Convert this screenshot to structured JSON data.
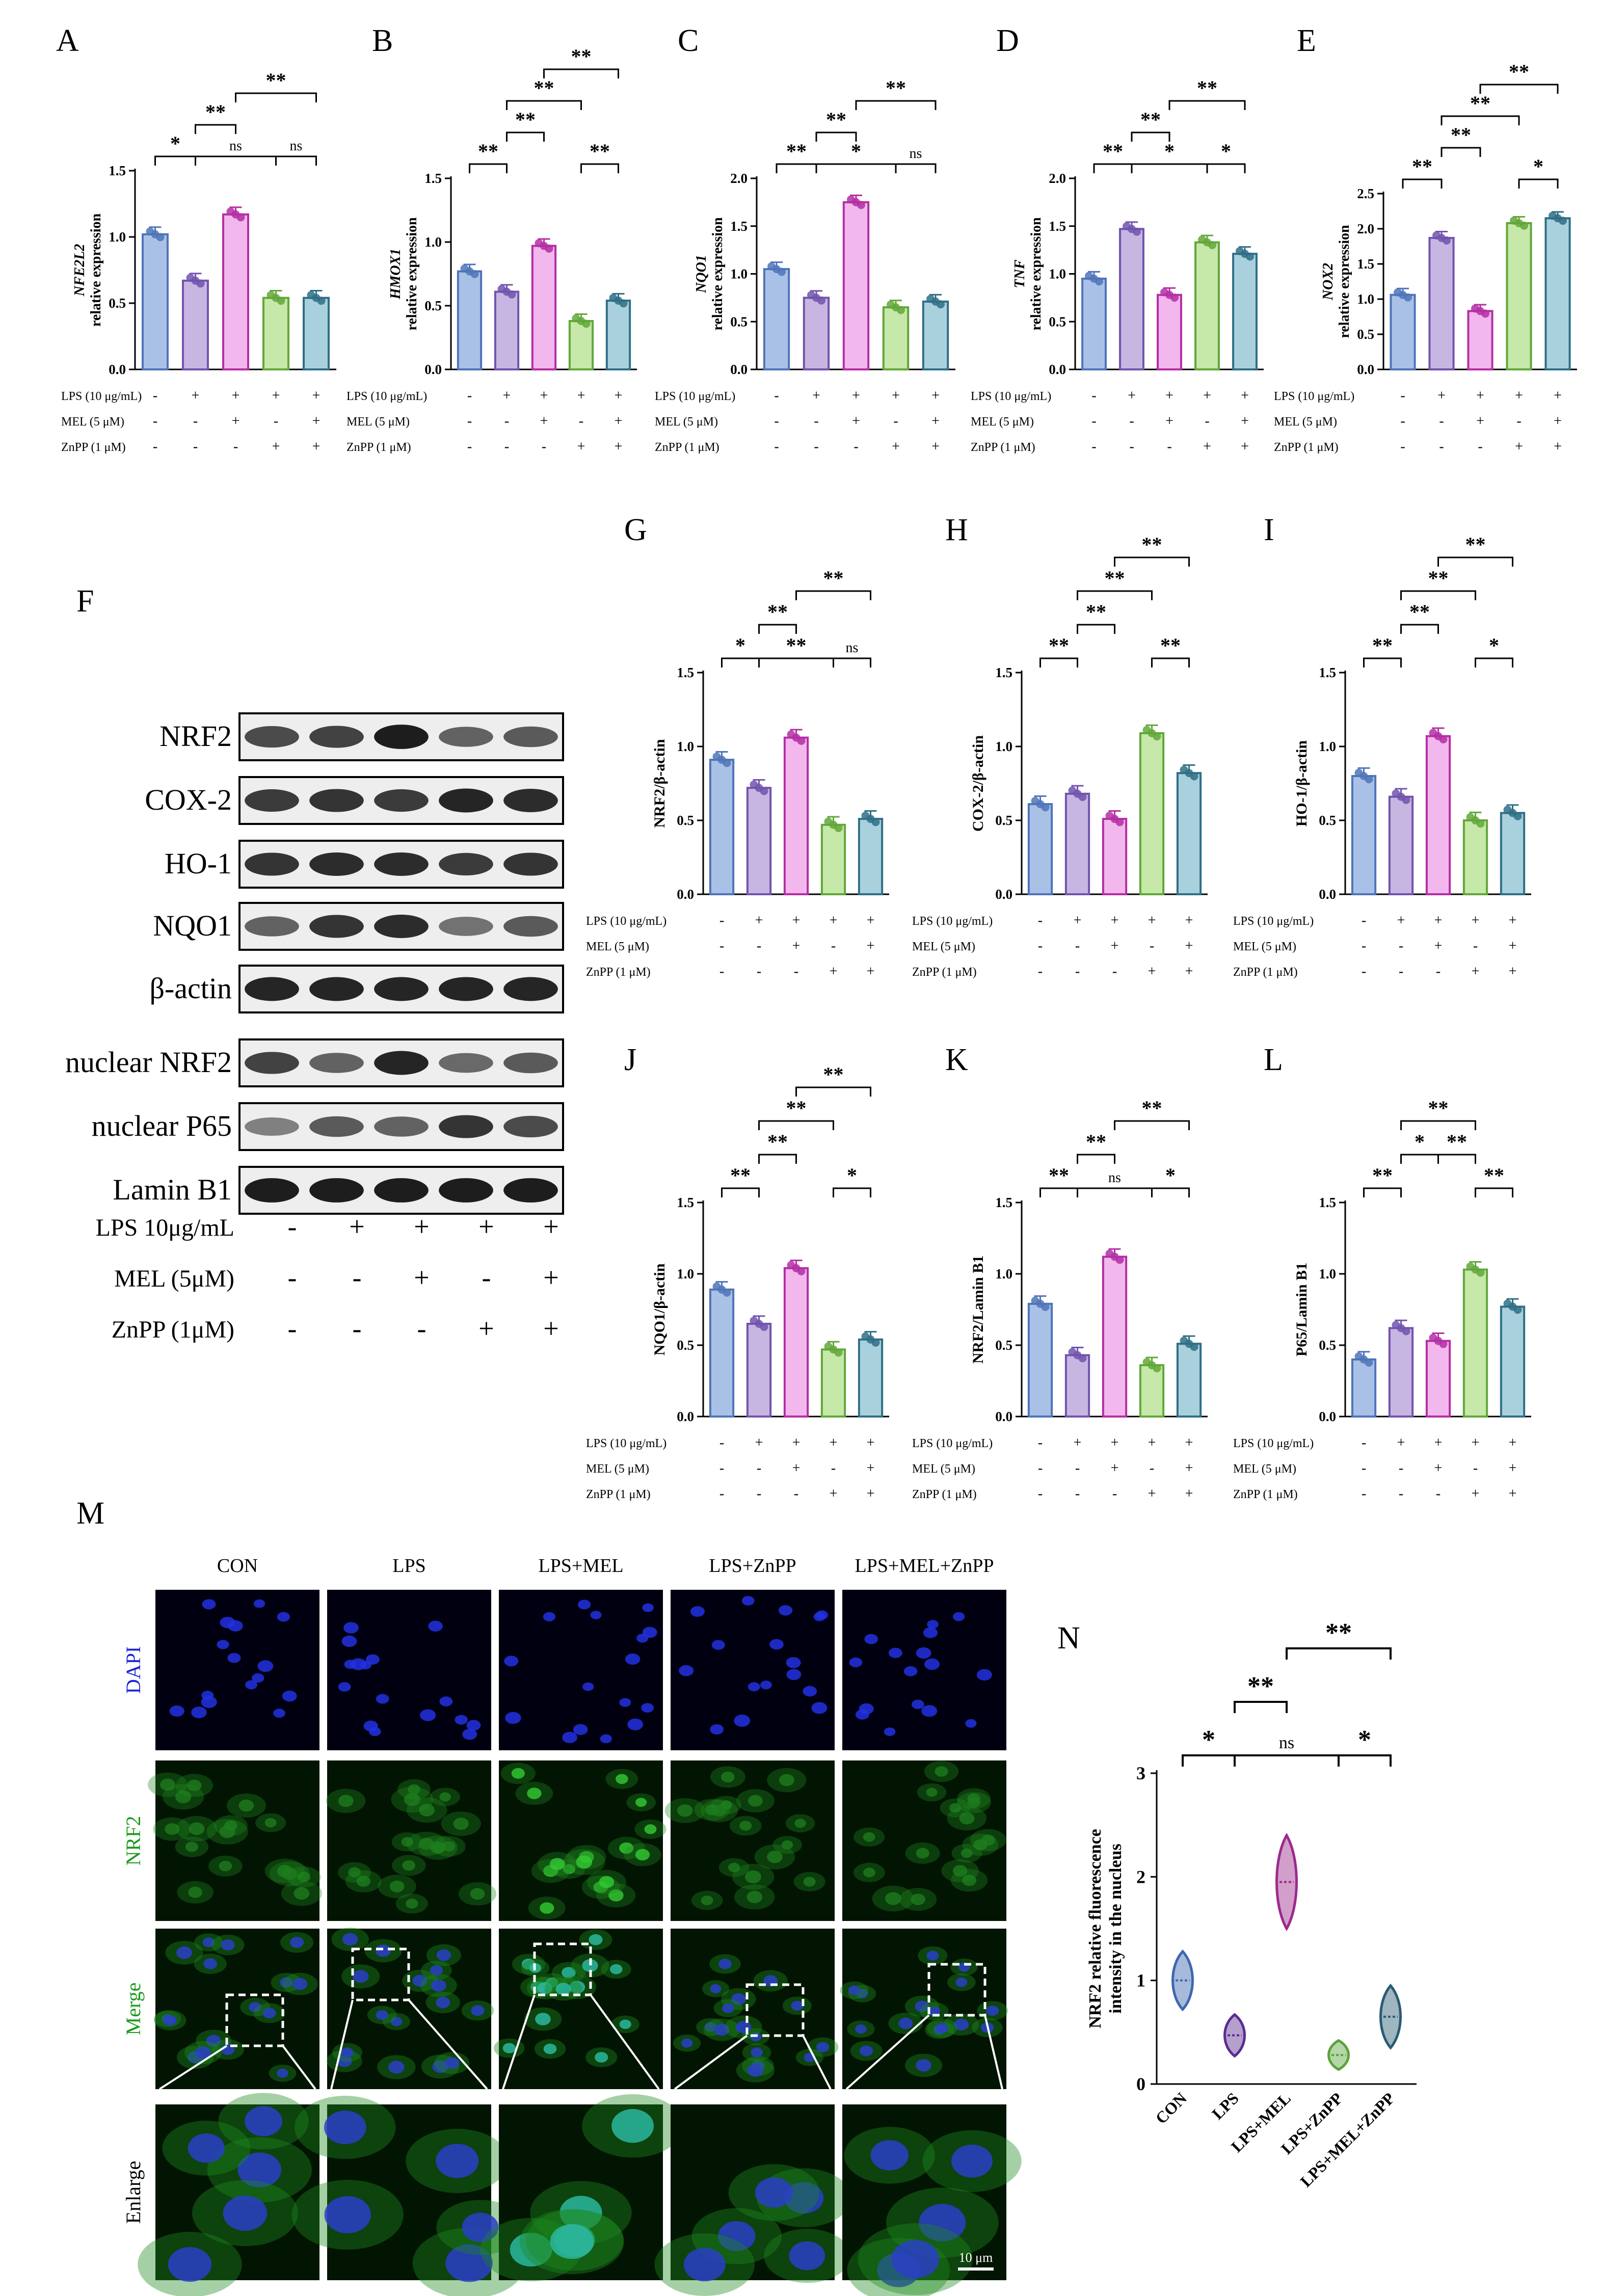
{
  "colors": {
    "g1": "#a9c1e6",
    "g1s": "#4f74b8",
    "g2": "#c7b6e2",
    "g2s": "#7154ad",
    "g3": "#f2b7ec",
    "g3s": "#b42ea4",
    "g4": "#c6e8a8",
    "g4s": "#62a73a",
    "g5": "#a9d1dd",
    "g5s": "#2f6f86",
    "violin1": "#3f67b0",
    "violin2": "#5a2d91",
    "violin3": "#9c2a8c",
    "violin4": "#5aa33c",
    "violin5": "#2a5b73",
    "dapi": "#1a23d6",
    "nrf2": "#1a9a1a"
  },
  "groups": [
    "CON",
    "LPS",
    "LPS+MEL",
    "LPS+ZnPP",
    "LPS+MEL+ZnPP"
  ],
  "treatment_rows": [
    {
      "label": "LPS (10 μg/mL)",
      "signs": [
        "-",
        "+",
        "+",
        "+",
        "+"
      ]
    },
    {
      "label": "MEL (5 μM)",
      "signs": [
        "-",
        "-",
        "+",
        "-",
        "+"
      ]
    },
    {
      "label": "ZnPP (1 μM)",
      "signs": [
        "-",
        "-",
        "-",
        "+",
        "+"
      ]
    }
  ],
  "chart_data": [
    {
      "panel": "A",
      "type": "bar",
      "ylabel_italic": "NFE2L2",
      "ylabel": "relative expression",
      "ylim": [
        0,
        1.5
      ],
      "ticks": [
        "0.0",
        "0.5",
        "1.0",
        "1.5"
      ],
      "values": [
        1.02,
        0.67,
        1.17,
        0.54,
        0.54
      ],
      "brackets": [
        {
          "a": 0,
          "b": 1,
          "l": 0,
          "t": "*"
        },
        {
          "a": 1,
          "b": 2,
          "l": 1,
          "t": "**"
        },
        {
          "a": 1,
          "b": 3,
          "l": 0,
          "t": "ns"
        },
        {
          "a": 3,
          "b": 4,
          "l": 0,
          "t": "ns"
        },
        {
          "a": 2,
          "b": 4,
          "l": 2,
          "t": "**"
        }
      ]
    },
    {
      "panel": "B",
      "type": "bar",
      "ylabel_italic": "HMOX1",
      "ylabel": "relative expression",
      "ylim": [
        0,
        1.5
      ],
      "ticks": [
        "0.0",
        "0.5",
        "1.0",
        "1.5"
      ],
      "values": [
        0.77,
        0.61,
        0.97,
        0.38,
        0.54
      ],
      "brackets": [
        {
          "a": 0,
          "b": 1,
          "l": 0,
          "t": "**"
        },
        {
          "a": 1,
          "b": 2,
          "l": 1,
          "t": "**"
        },
        {
          "a": 1,
          "b": 3,
          "l": 2,
          "t": "**"
        },
        {
          "a": 3,
          "b": 4,
          "l": 0,
          "t": "**"
        },
        {
          "a": 2,
          "b": 4,
          "l": 3,
          "t": "**"
        }
      ]
    },
    {
      "panel": "C",
      "type": "bar",
      "ylabel_italic": "NQO1",
      "ylabel": "relative expression",
      "ylim": [
        0,
        2.0
      ],
      "ticks": [
        "0.0",
        "0.5",
        "1.0",
        "1.5",
        "2.0"
      ],
      "values": [
        1.05,
        0.75,
        1.75,
        0.65,
        0.71
      ],
      "brackets": [
        {
          "a": 0,
          "b": 1,
          "l": 0,
          "t": "**"
        },
        {
          "a": 1,
          "b": 2,
          "l": 1,
          "t": "**"
        },
        {
          "a": 1,
          "b": 3,
          "l": 0,
          "t": "*"
        },
        {
          "a": 3,
          "b": 4,
          "l": 0,
          "t": "ns"
        },
        {
          "a": 2,
          "b": 4,
          "l": 2,
          "t": "**"
        }
      ]
    },
    {
      "panel": "D",
      "type": "bar",
      "ylabel_italic": "TNF",
      "ylabel": "relative expression",
      "ylim": [
        0,
        2.0
      ],
      "ticks": [
        "0.0",
        "0.5",
        "1.0",
        "1.5",
        "2.0"
      ],
      "values": [
        0.95,
        1.47,
        0.78,
        1.33,
        1.21
      ],
      "brackets": [
        {
          "a": 0,
          "b": 1,
          "l": 0,
          "t": "**"
        },
        {
          "a": 1,
          "b": 2,
          "l": 1,
          "t": "**"
        },
        {
          "a": 1,
          "b": 3,
          "l": 0,
          "t": "*"
        },
        {
          "a": 3,
          "b": 4,
          "l": 0,
          "t": "*"
        },
        {
          "a": 2,
          "b": 4,
          "l": 2,
          "t": "**"
        }
      ]
    },
    {
      "panel": "E",
      "type": "bar",
      "ylabel_italic": "NOX2",
      "ylabel": "relative expression",
      "ylim": [
        0,
        2.5
      ],
      "ticks": [
        "0.0",
        "0.5",
        "1.0",
        "1.5",
        "2.0",
        "2.5"
      ],
      "values": [
        1.06,
        1.87,
        0.83,
        2.08,
        2.15
      ],
      "brackets": [
        {
          "a": 0,
          "b": 1,
          "l": 0,
          "t": "**"
        },
        {
          "a": 1,
          "b": 2,
          "l": 1,
          "t": "**"
        },
        {
          "a": 1,
          "b": 3,
          "l": 2,
          "t": "**"
        },
        {
          "a": 3,
          "b": 4,
          "l": 0,
          "t": "*"
        },
        {
          "a": 2,
          "b": 4,
          "l": 3,
          "t": "**"
        }
      ]
    },
    {
      "panel": "G",
      "type": "bar",
      "ylabel": "NRF2/β-actin",
      "ylim": [
        0,
        1.5
      ],
      "ticks": [
        "0.0",
        "0.5",
        "1.0",
        "1.5"
      ],
      "values": [
        0.91,
        0.72,
        1.06,
        0.47,
        0.51
      ],
      "brackets": [
        {
          "a": 0,
          "b": 1,
          "l": 0,
          "t": "*"
        },
        {
          "a": 1,
          "b": 2,
          "l": 1,
          "t": "**"
        },
        {
          "a": 1,
          "b": 3,
          "l": 0,
          "t": "**"
        },
        {
          "a": 3,
          "b": 4,
          "l": 0,
          "t": "ns"
        },
        {
          "a": 2,
          "b": 4,
          "l": 2,
          "t": "**"
        }
      ]
    },
    {
      "panel": "H",
      "type": "bar",
      "ylabel": "COX-2/β-actin",
      "ylim": [
        0,
        1.5
      ],
      "ticks": [
        "0.0",
        "0.5",
        "1.0",
        "1.5"
      ],
      "values": [
        0.61,
        0.68,
        0.51,
        1.09,
        0.82
      ],
      "brackets": [
        {
          "a": 0,
          "b": 1,
          "l": 0,
          "t": "**"
        },
        {
          "a": 1,
          "b": 2,
          "l": 1,
          "t": "**"
        },
        {
          "a": 1,
          "b": 3,
          "l": 2,
          "t": "**"
        },
        {
          "a": 3,
          "b": 4,
          "l": 0,
          "t": "**"
        },
        {
          "a": 2,
          "b": 4,
          "l": 3,
          "t": "**"
        }
      ]
    },
    {
      "panel": "I",
      "type": "bar",
      "ylabel": "HO-1/β-actin",
      "ylim": [
        0,
        1.5
      ],
      "ticks": [
        "0.0",
        "0.5",
        "1.0",
        "1.5"
      ],
      "values": [
        0.8,
        0.66,
        1.07,
        0.5,
        0.55
      ],
      "brackets": [
        {
          "a": 0,
          "b": 1,
          "l": 0,
          "t": "**"
        },
        {
          "a": 1,
          "b": 2,
          "l": 1,
          "t": "**"
        },
        {
          "a": 1,
          "b": 3,
          "l": 2,
          "t": "**"
        },
        {
          "a": 3,
          "b": 4,
          "l": 0,
          "t": "*"
        },
        {
          "a": 2,
          "b": 4,
          "l": 3,
          "t": "**"
        }
      ]
    },
    {
      "panel": "J",
      "type": "bar",
      "ylabel": "NQO1/β-actin",
      "ylim": [
        0,
        1.5
      ],
      "ticks": [
        "0.0",
        "0.5",
        "1.0",
        "1.5"
      ],
      "values": [
        0.89,
        0.65,
        1.04,
        0.47,
        0.54
      ],
      "brackets": [
        {
          "a": 0,
          "b": 1,
          "l": 0,
          "t": "**"
        },
        {
          "a": 1,
          "b": 2,
          "l": 1,
          "t": "**"
        },
        {
          "a": 1,
          "b": 3,
          "l": 2,
          "t": "**"
        },
        {
          "a": 3,
          "b": 4,
          "l": 0,
          "t": "*"
        },
        {
          "a": 2,
          "b": 4,
          "l": 3,
          "t": "**"
        }
      ]
    },
    {
      "panel": "K",
      "type": "bar",
      "ylabel": "NRF2/Lamin B1",
      "ylim": [
        0,
        1.5
      ],
      "ticks": [
        "0.0",
        "0.5",
        "1.0",
        "1.5"
      ],
      "values": [
        0.79,
        0.43,
        1.12,
        0.36,
        0.51
      ],
      "brackets": [
        {
          "a": 0,
          "b": 1,
          "l": 0,
          "t": "**"
        },
        {
          "a": 1,
          "b": 2,
          "l": 1,
          "t": "**"
        },
        {
          "a": 1,
          "b": 3,
          "l": 0,
          "t": "ns"
        },
        {
          "a": 3,
          "b": 4,
          "l": 0,
          "t": "*"
        },
        {
          "a": 2,
          "b": 4,
          "l": 2,
          "t": "**"
        }
      ]
    },
    {
      "panel": "L",
      "type": "bar",
      "ylabel": "P65/Lamin B1",
      "ylim": [
        0,
        1.5
      ],
      "ticks": [
        "0.0",
        "0.5",
        "1.0",
        "1.5"
      ],
      "values": [
        0.4,
        0.62,
        0.53,
        1.03,
        0.77
      ],
      "brackets": [
        {
          "a": 0,
          "b": 1,
          "l": 0,
          "t": "**"
        },
        {
          "a": 1,
          "b": 2,
          "l": 1,
          "t": "*"
        },
        {
          "a": 1,
          "b": 3,
          "l": 2,
          "t": "**"
        },
        {
          "a": 2,
          "b": 3,
          "l": 1,
          "t": "**"
        },
        {
          "a": 3,
          "b": 4,
          "l": 0,
          "t": "**"
        }
      ]
    },
    {
      "panel": "N",
      "type": "violin",
      "ylabel": "NRF2 relative fluorescence",
      "ylabel2": "intensity in the nucleus",
      "ylim": [
        0,
        3
      ],
      "ticks": [
        "0",
        "1",
        "2",
        "3"
      ],
      "medians": [
        1.0,
        0.47,
        1.95,
        0.28,
        0.65
      ],
      "spreads": [
        0.28,
        0.2,
        0.45,
        0.14,
        0.3
      ],
      "brackets": [
        {
          "a": 0,
          "b": 1,
          "l": 0,
          "t": "*"
        },
        {
          "a": 1,
          "b": 2,
          "l": 1,
          "t": "**"
        },
        {
          "a": 1,
          "b": 3,
          "l": 0,
          "t": "ns"
        },
        {
          "a": 3,
          "b": 4,
          "l": 0,
          "t": "*"
        },
        {
          "a": 2,
          "b": 4,
          "l": 2,
          "t": "**"
        }
      ]
    }
  ],
  "western": {
    "panel": "F",
    "bands": [
      "NRF2",
      "COX-2",
      "HO-1",
      "NQO1",
      "β-actin",
      "nuclear NRF2",
      "nuclear P65",
      "Lamin B1"
    ],
    "rows": [
      {
        "label": "LPS 10μg/mL",
        "signs": [
          "-",
          "+",
          "+",
          "+",
          "+"
        ]
      },
      {
        "label": "MEL  (5μM)",
        "signs": [
          "-",
          "-",
          "+",
          "-",
          "+"
        ]
      },
      {
        "label": "ZnPP (1μM)",
        "signs": [
          "-",
          "-",
          "-",
          "+",
          "+"
        ]
      }
    ]
  },
  "microscopy": {
    "panel": "M",
    "columns": [
      "CON",
      "LPS",
      "LPS+MEL",
      "LPS+ZnPP",
      "LPS+MEL+ZnPP"
    ],
    "rows": [
      "DAPI",
      "NRF2",
      "Merge",
      "Enlarge"
    ],
    "scale_bar": "10 μm"
  }
}
